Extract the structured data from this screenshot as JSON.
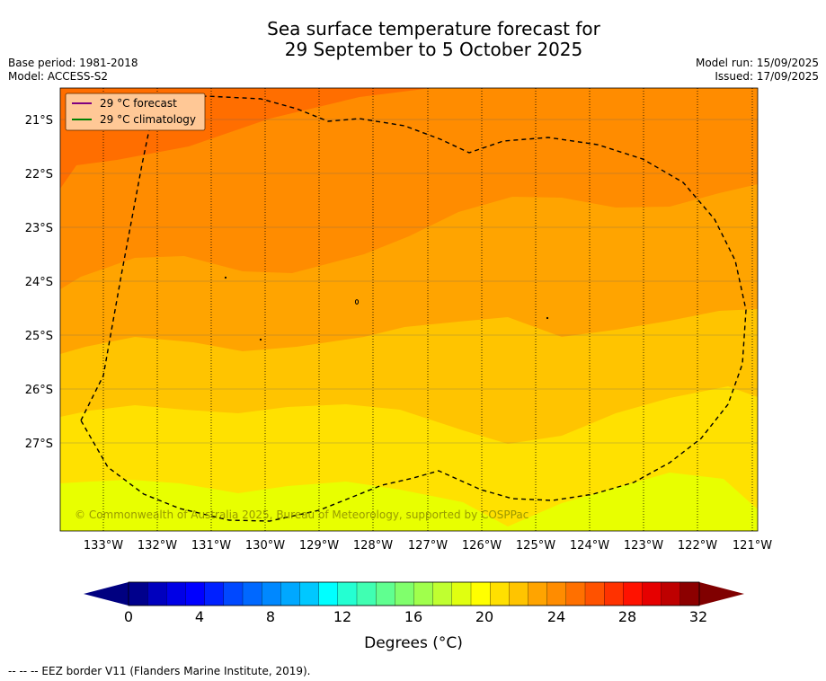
{
  "title": {
    "line1": "Sea surface temperature forecast for",
    "line2": "29 September to 5 October 2025"
  },
  "meta": {
    "base_period": "Base period: 1981-2018",
    "model": "Model: ACCESS-S2",
    "model_run": "Model run: 15/09/2025",
    "issued": "Issued: 17/09/2025"
  },
  "legend": {
    "forecast": "29 °C  forecast",
    "climatology": "29 °C  climatology",
    "forecast_color": "#800080",
    "climatology_color": "#008000"
  },
  "copyright": "© Commonwealth of Australia 2025, Bureau of Meteorology, supported by COSPPac",
  "map": {
    "lat_labels": [
      "21°S",
      "22°S",
      "23°S",
      "24°S",
      "25°S",
      "26°S",
      "27°S"
    ],
    "lon_labels": [
      "133°W",
      "132°W",
      "131°W",
      "130°W",
      "129°W",
      "128°W",
      "127°W",
      "126°W",
      "125°W",
      "124°W",
      "123°W",
      "122°W",
      "121°W"
    ],
    "band_colors": [
      "#ff6e00",
      "#ff8c00",
      "#ffa400",
      "#ffc400",
      "#ffe100",
      "#e8ff00"
    ]
  },
  "colorbar": {
    "ticks": [
      "0",
      "4",
      "8",
      "12",
      "16",
      "20",
      "24",
      "28",
      "32"
    ],
    "label": "Degrees (°C)",
    "under_color": "#000080",
    "over_color": "#800000",
    "colors": [
      "#00008c",
      "#0000be",
      "#0000e6",
      "#0000ff",
      "#0020ff",
      "#0048ff",
      "#0068ff",
      "#0088ff",
      "#00a8ff",
      "#00c8ff",
      "#00ffff",
      "#24ffd2",
      "#40ffb2",
      "#60ff90",
      "#80ff6c",
      "#a0ff4c",
      "#c0ff30",
      "#e0ff10",
      "#ffff00",
      "#ffe000",
      "#ffc400",
      "#ffa400",
      "#ff8c00",
      "#ff7000",
      "#ff5200",
      "#ff3200",
      "#ff1200",
      "#e60000",
      "#be0000",
      "#8c0000"
    ]
  },
  "footer": "--  --  -- EEZ border V11 (Flanders Marine Institute, 2019)."
}
